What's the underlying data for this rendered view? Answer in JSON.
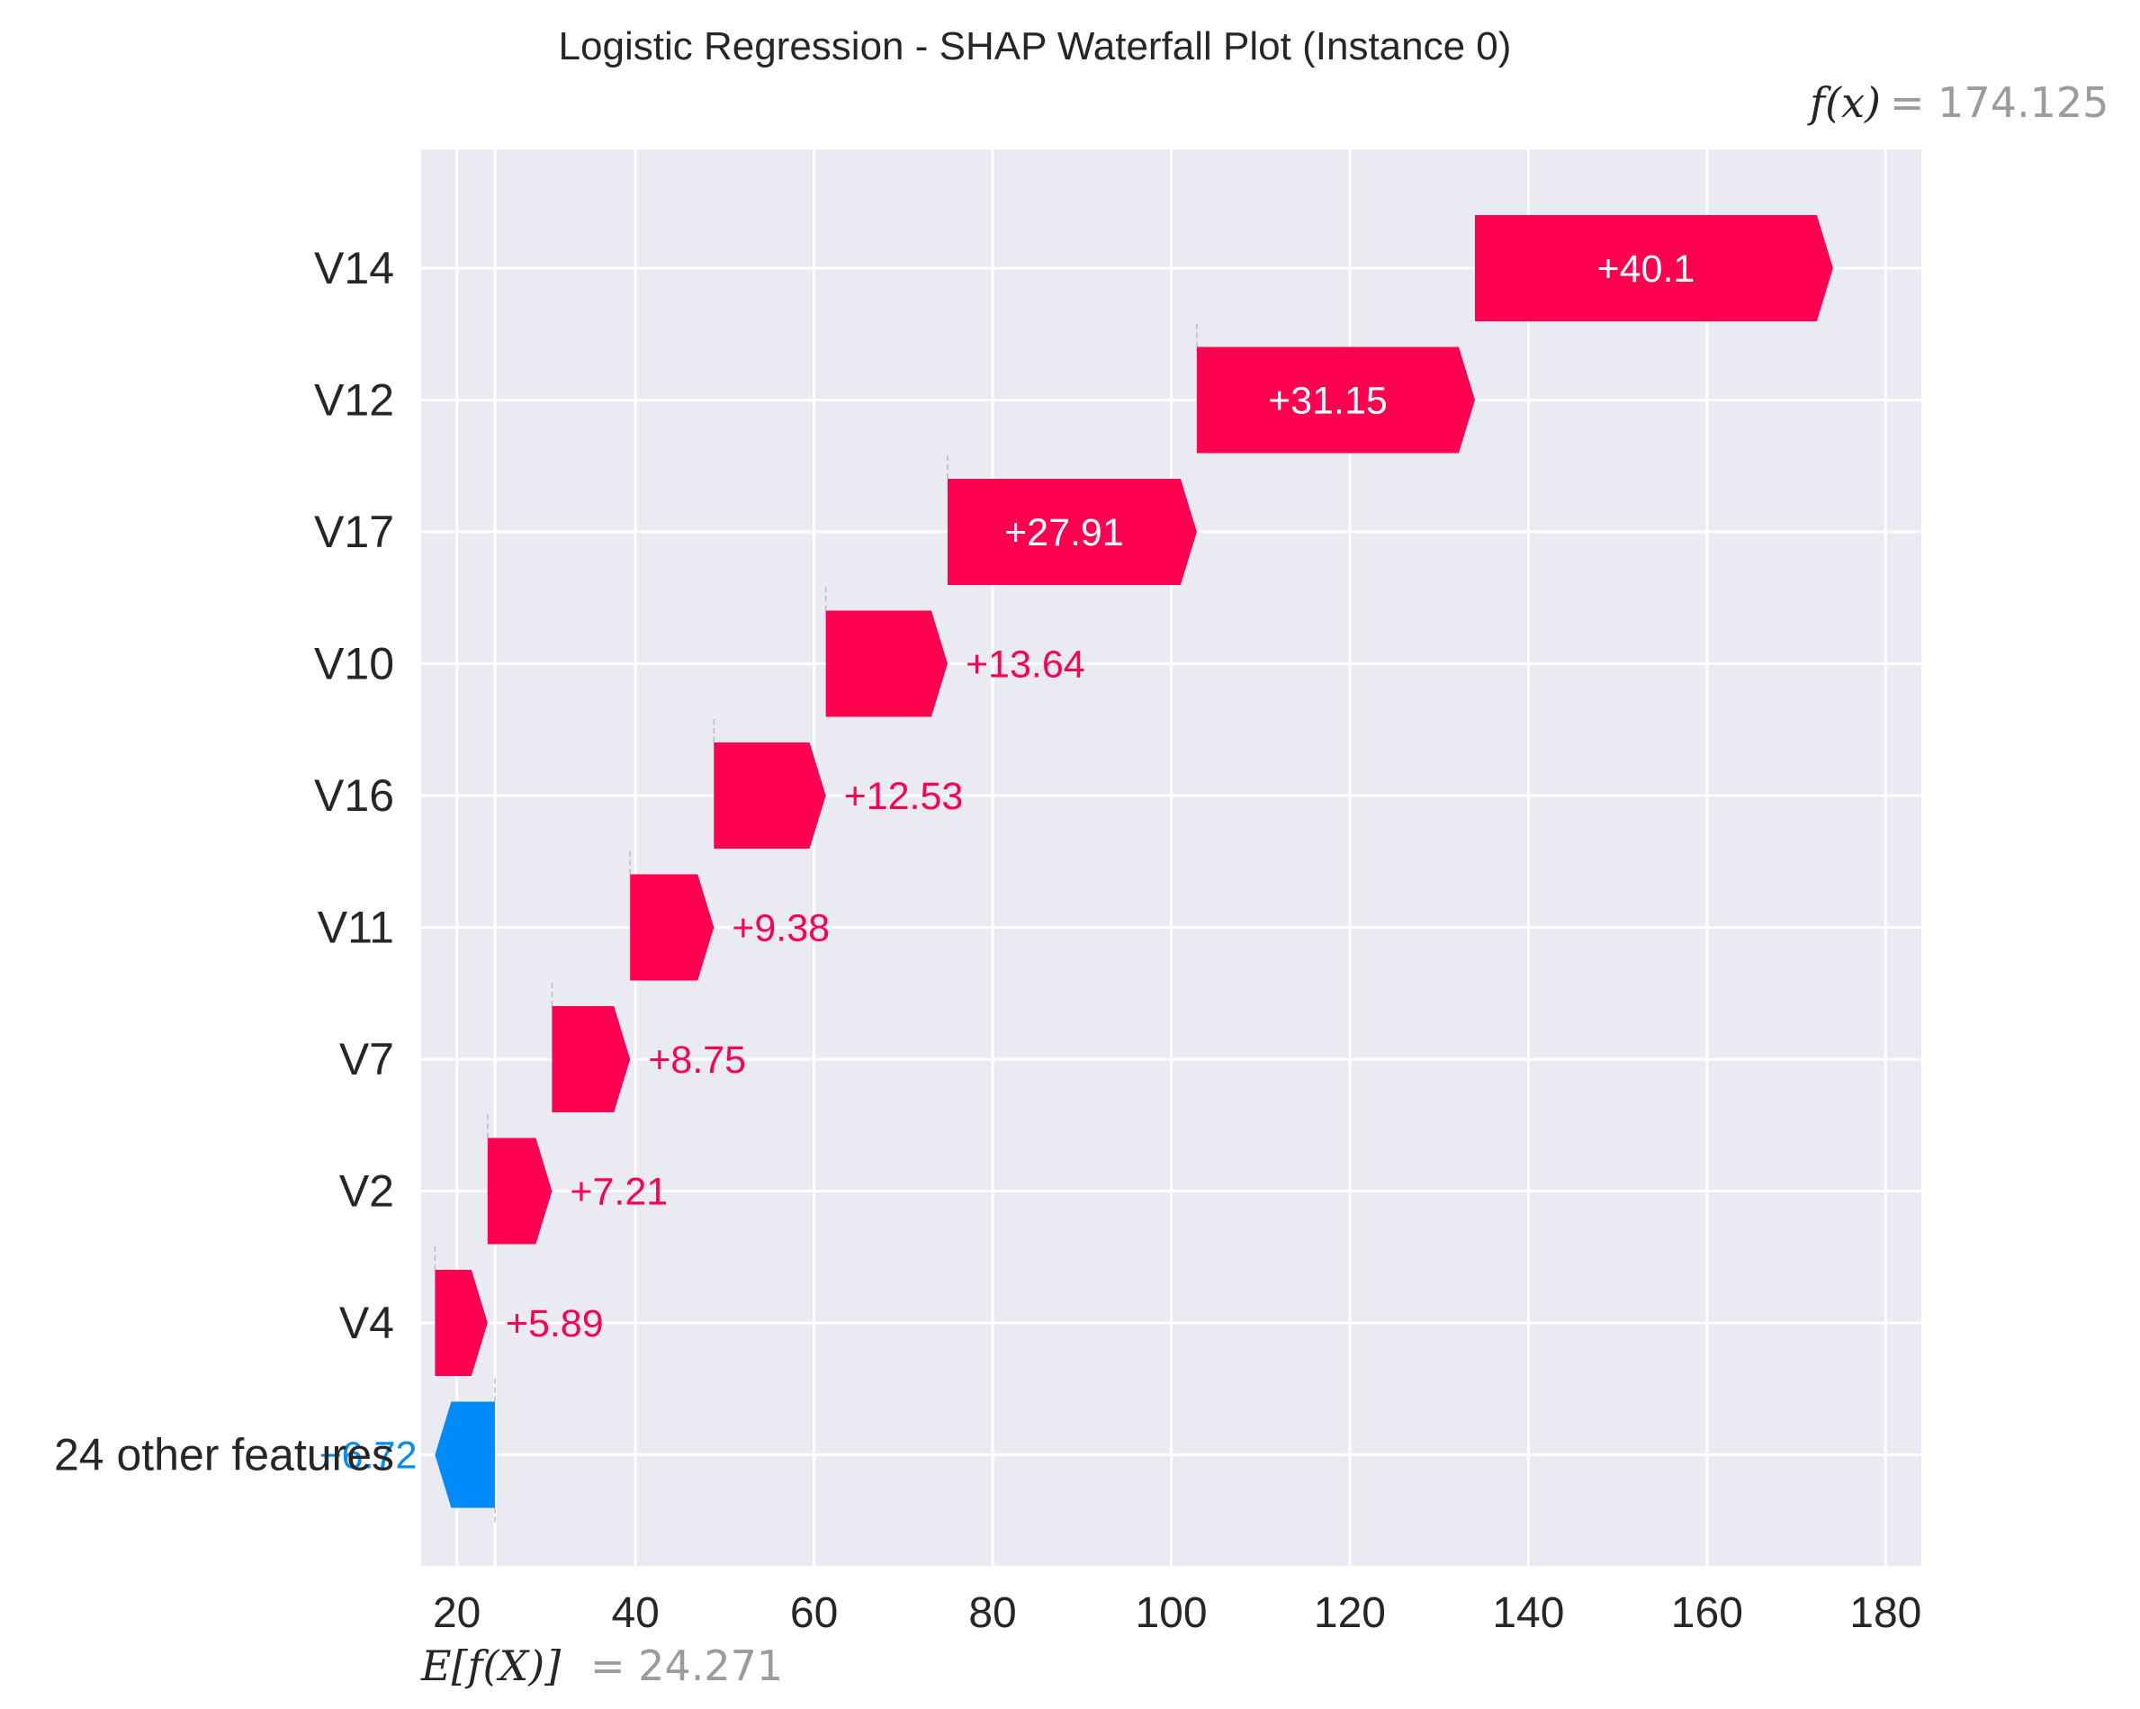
{
  "chart_data": {
    "type": "waterfall",
    "title": "Logistic Regression - SHAP Waterfall Plot (Instance 0)",
    "base_value": 24.271,
    "output_value": 174.125,
    "base_label": "E[f(X)]",
    "base_value_text": "= 24.271",
    "output_label": "f(x)",
    "output_value_text": "= 174.125",
    "xlim": [
      16,
      184
    ],
    "x_ticks": [
      20,
      40,
      60,
      80,
      100,
      120,
      140,
      160,
      180
    ],
    "grid": true,
    "features": [
      {
        "name": "V14",
        "value": 40.1,
        "label": "+40.1"
      },
      {
        "name": "V12",
        "value": 31.15,
        "label": "+31.15"
      },
      {
        "name": "V17",
        "value": 27.91,
        "label": "+27.91"
      },
      {
        "name": "V10",
        "value": 13.64,
        "label": "+13.64"
      },
      {
        "name": "V16",
        "value": 12.53,
        "label": "+12.53"
      },
      {
        "name": "V11",
        "value": 9.38,
        "label": "+9.38"
      },
      {
        "name": "V7",
        "value": 8.75,
        "label": "+8.75"
      },
      {
        "name": "V2",
        "value": 7.21,
        "label": "+7.21"
      },
      {
        "name": "V4",
        "value": 5.89,
        "label": "+5.89"
      },
      {
        "name": "24 other features",
        "value": -6.72,
        "label": "−6.72"
      }
    ],
    "colors": {
      "positive": "#ff0051",
      "negative": "#008bfb",
      "background": "#eaeaf2",
      "grid": "#ffffff"
    }
  }
}
